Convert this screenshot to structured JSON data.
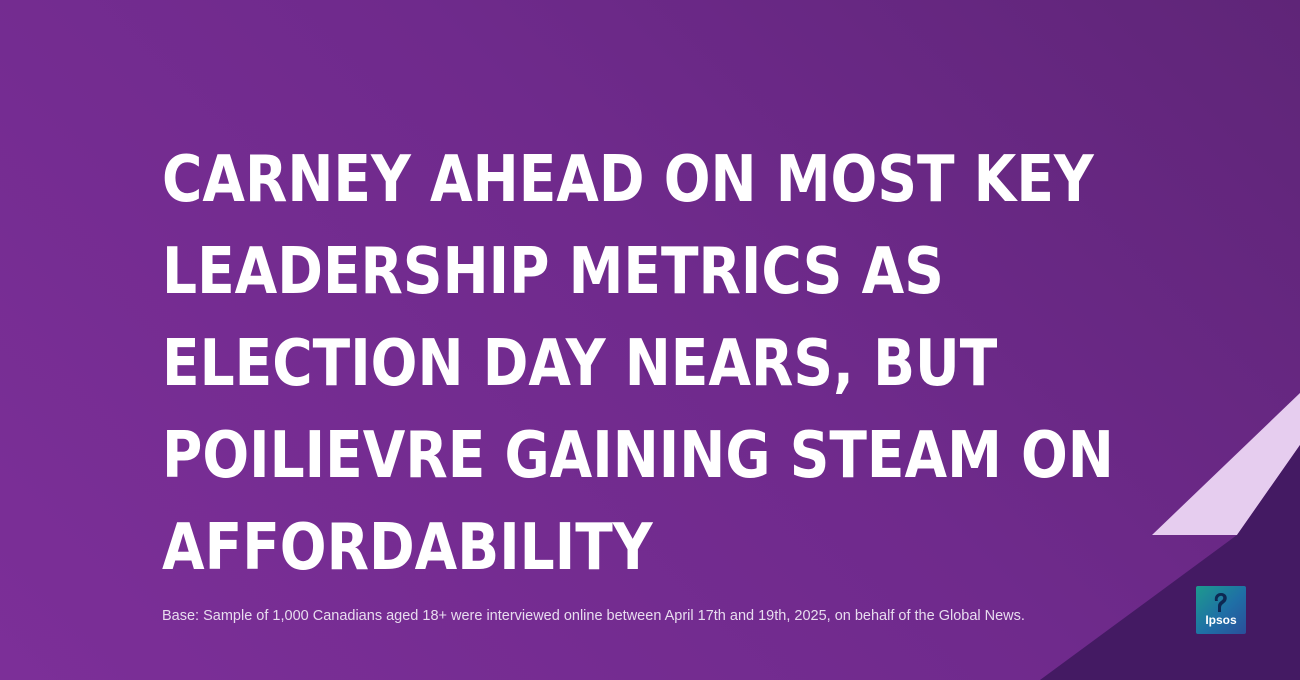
{
  "headline": {
    "lines": [
      "CARNEY AHEAD ON MOST KEY",
      "LEADERSHIP METRICS AS",
      "ELECTION DAY NEARS, BUT",
      "POILIEVRE GAINING STEAM ON",
      "AFFORDABILITY"
    ]
  },
  "base_note": "Base: Sample of 1,000 Canadians aged 18+ were interviewed online between April 17th and 19th, 2025, on behalf of the Global News.",
  "logo": {
    "text": "Ipsos",
    "icon": "ipsos-logo-icon"
  },
  "colors": {
    "background": "#6f2a8c",
    "headline": "#ffffff",
    "accent_light": "#e6cdef",
    "accent_dark": "#441a63"
  }
}
